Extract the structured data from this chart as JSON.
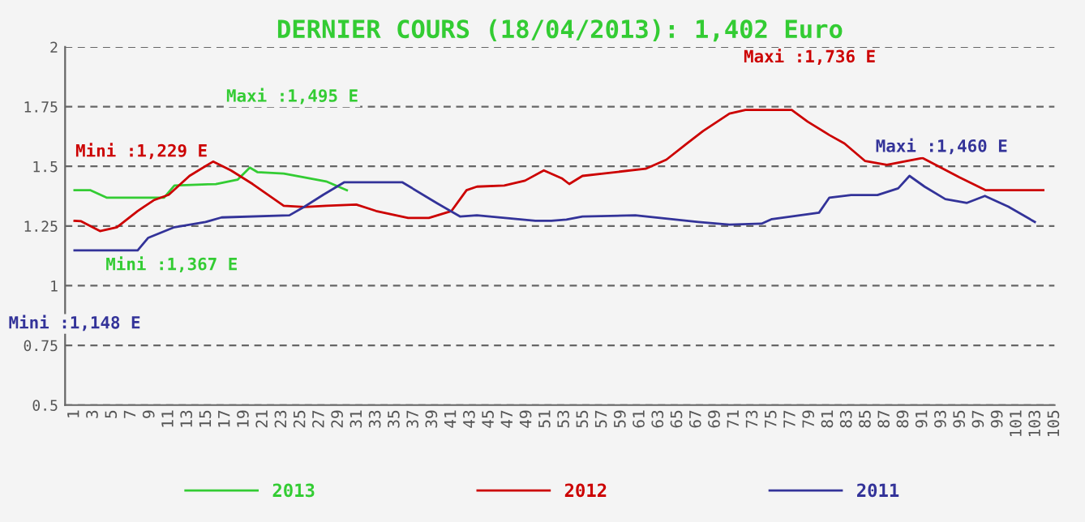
{
  "chart_data": {
    "type": "line",
    "title": "DERNIER COURS (18/04/2013): 1,402 Euro",
    "xlim": [
      0,
      105
    ],
    "ylim": [
      0.5,
      2
    ],
    "xticks": [
      1,
      3,
      5,
      7,
      9,
      11,
      13,
      15,
      17,
      19,
      21,
      23,
      25,
      27,
      29,
      31,
      33,
      35,
      37,
      39,
      41,
      43,
      45,
      47,
      49,
      51,
      53,
      55,
      57,
      59,
      61,
      63,
      65,
      67,
      69,
      71,
      73,
      75,
      77,
      79,
      81,
      83,
      85,
      87,
      89,
      91,
      93,
      95,
      97,
      99,
      101,
      103,
      105
    ],
    "yticks": [
      0.5,
      {
        "value": 0.75,
        "label": "0.75"
      },
      1,
      1.25,
      1.5,
      1.75,
      2
    ],
    "grid": "y",
    "legend": "bottom",
    "line_style": "solid",
    "marker": "none",
    "series": [
      {
        "name": "2013",
        "color": "#33cc33",
        "x": [
          1,
          2.7,
          4.4,
          10.5,
          11.6,
          16,
          18.3,
          19.6,
          20.4,
          23.2,
          25.4,
          27.7,
          29.9
        ],
        "values": [
          1.4,
          1.4,
          1.369,
          1.369,
          1.42,
          1.426,
          1.444,
          1.495,
          1.476,
          1.47,
          1.454,
          1.437,
          1.4
        ]
      },
      {
        "name": "2012",
        "color": "#cc0000",
        "x": [
          1,
          1.7,
          3.7,
          5.5,
          7.7,
          9.4,
          11,
          13.2,
          15.7,
          17.6,
          19.9,
          23.2,
          25.4,
          27.7,
          30.9,
          33,
          36.4,
          38.6,
          41,
          42.6,
          43.7,
          46.6,
          48.8,
          50.8,
          52.7,
          53.5,
          54.9,
          57.1,
          61.6,
          63.8,
          66,
          67.7,
          70.5,
          72.2,
          77.1,
          78.8,
          81.1,
          82.7,
          84.9,
          87.2,
          91,
          94.9,
          97.7,
          103.8
        ],
        "values": [
          1.272,
          1.27,
          1.229,
          1.245,
          1.313,
          1.358,
          1.381,
          1.46,
          1.52,
          1.483,
          1.426,
          1.335,
          1.33,
          1.335,
          1.34,
          1.313,
          1.284,
          1.284,
          1.313,
          1.4,
          1.415,
          1.42,
          1.44,
          1.483,
          1.45,
          1.426,
          1.46,
          1.47,
          1.49,
          1.528,
          1.596,
          1.648,
          1.721,
          1.736,
          1.736,
          1.687,
          1.631,
          1.596,
          1.522,
          1.506,
          1.535,
          1.454,
          1.4,
          1.4
        ]
      },
      {
        "name": "2011",
        "color": "#333399",
        "x": [
          1,
          2,
          7.7,
          8.8,
          11.6,
          14.9,
          16.6,
          23.8,
          25.4,
          27.4,
          29.6,
          35.8,
          39.4,
          41.9,
          43.7,
          49.9,
          51.6,
          53.2,
          54.9,
          60.5,
          67.2,
          70.5,
          73.9,
          75,
          80,
          81.1,
          83.4,
          86.2,
          88.4,
          89.6,
          91.2,
          93.4,
          95.7,
          97.6,
          100.1,
          102.9
        ],
        "values": [
          1.148,
          1.148,
          1.148,
          1.2,
          1.245,
          1.267,
          1.286,
          1.295,
          1.331,
          1.381,
          1.433,
          1.433,
          1.347,
          1.29,
          1.295,
          1.272,
          1.272,
          1.277,
          1.29,
          1.295,
          1.267,
          1.256,
          1.26,
          1.279,
          1.306,
          1.369,
          1.38,
          1.38,
          1.408,
          1.46,
          1.415,
          1.363,
          1.347,
          1.376,
          1.331,
          1.267
        ]
      }
    ],
    "annotations": [
      "Maxi :1,495 E",
      "Mini :1,367 E",
      "Mini :1,229 E",
      "Maxi :1,736 E",
      "Maxi :1,460 E",
      "Mini :1,148 E"
    ]
  }
}
